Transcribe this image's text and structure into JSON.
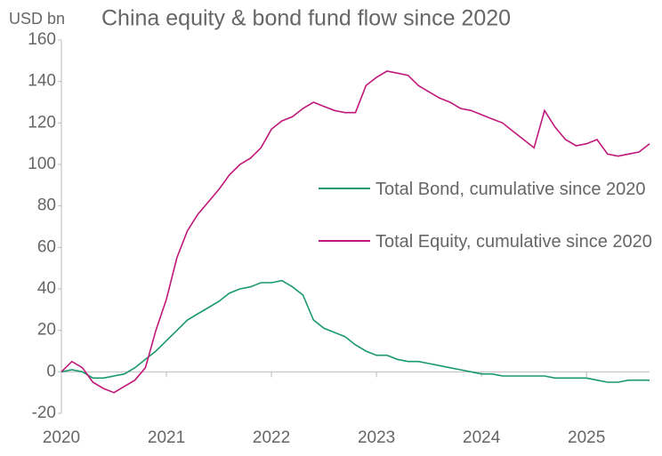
{
  "chart_data": {
    "type": "line",
    "unit_label": "USD bn",
    "title": "China equity & bond fund flow since 2020",
    "x": [
      2020.0,
      2020.1,
      2020.2,
      2020.3,
      2020.4,
      2020.5,
      2020.6,
      2020.7,
      2020.8,
      2020.9,
      2021.0,
      2021.1,
      2021.2,
      2021.3,
      2021.4,
      2021.5,
      2021.6,
      2021.7,
      2021.8,
      2021.9,
      2022.0,
      2022.1,
      2022.2,
      2022.3,
      2022.4,
      2022.5,
      2022.6,
      2022.7,
      2022.8,
      2022.9,
      2023.0,
      2023.1,
      2023.2,
      2023.3,
      2023.4,
      2023.5,
      2023.6,
      2023.7,
      2023.8,
      2023.9,
      2024.0,
      2024.1,
      2024.2,
      2024.3,
      2024.4,
      2024.5,
      2024.6,
      2024.7,
      2024.8,
      2024.9,
      2025.0,
      2025.1,
      2025.2,
      2025.3,
      2025.4,
      2025.5,
      2025.6
    ],
    "series": [
      {
        "name": "Total Bond, cumulative since 2020",
        "color": "#1a9a6a",
        "values": [
          0,
          1,
          0,
          -3,
          -3,
          -2,
          -1,
          2,
          6,
          10,
          15,
          20,
          25,
          28,
          31,
          34,
          38,
          40,
          41,
          43,
          43,
          44,
          41,
          37,
          25,
          21,
          19,
          17,
          13,
          10,
          8,
          8,
          6,
          5,
          5,
          4,
          3,
          2,
          1,
          0,
          -1,
          -1,
          -2,
          -2,
          -2,
          -2,
          -2,
          -3,
          -3,
          -3,
          -3,
          -4,
          -5,
          -5,
          -4,
          -4,
          -4
        ]
      },
      {
        "name": "Total Equity, cumulative since 2020",
        "color": "#c0187a",
        "values": [
          0,
          5,
          2,
          -5,
          -8,
          -10,
          -7,
          -4,
          2,
          20,
          35,
          55,
          68,
          76,
          82,
          88,
          95,
          100,
          103,
          108,
          117,
          121,
          123,
          127,
          130,
          128,
          126,
          125,
          125,
          138,
          142,
          145,
          144,
          143,
          138,
          135,
          132,
          130,
          127,
          126,
          124,
          122,
          120,
          116,
          112,
          108,
          126,
          118,
          112,
          109,
          110,
          112,
          105,
          104,
          105,
          106,
          110
        ]
      }
    ],
    "xlim": [
      2020,
      2025.6
    ],
    "xticks": [
      2020,
      2021,
      2022,
      2023,
      2024,
      2025
    ],
    "ylim": [
      -20,
      160
    ],
    "yticks": [
      -20,
      0,
      20,
      40,
      60,
      80,
      100,
      120,
      140,
      160
    ]
  }
}
